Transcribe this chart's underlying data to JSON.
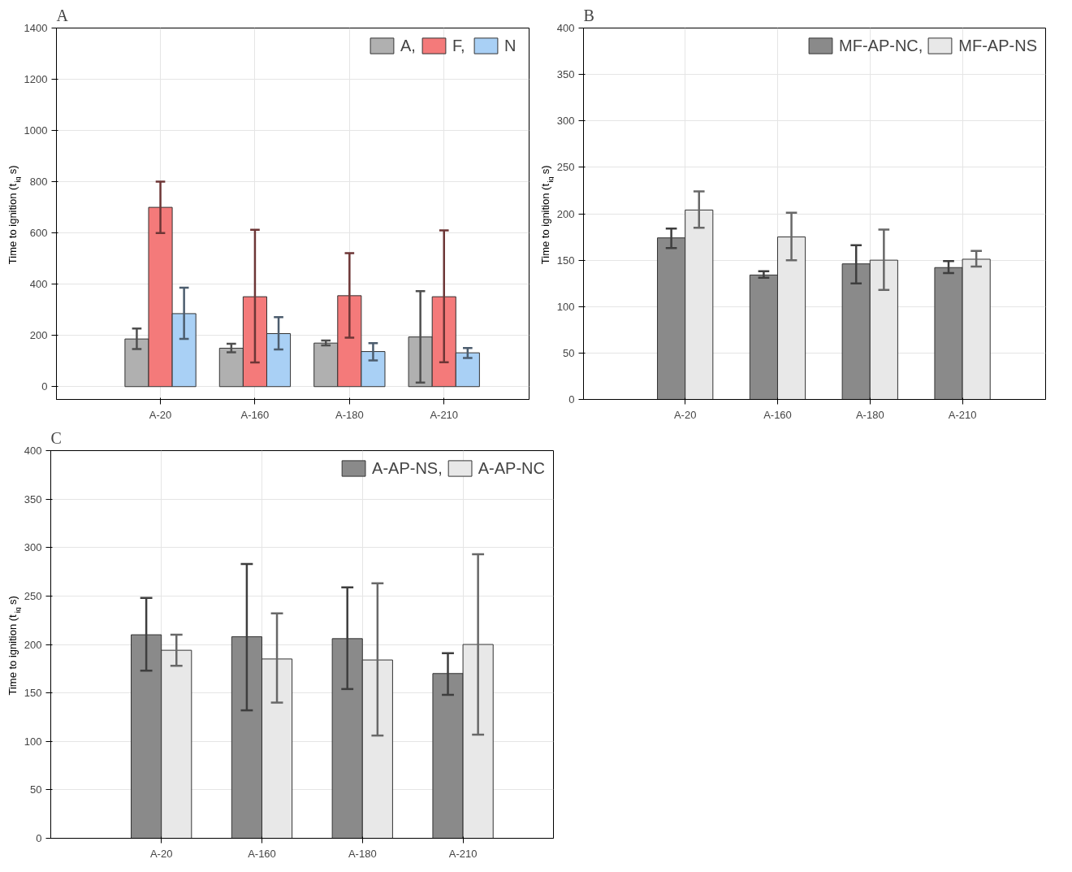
{
  "chart_data": [
    {
      "type": "bar",
      "title": "A",
      "ylabel": "Time to ignition (t$_{ig}$s)",
      "categories": [
        "A-20",
        "A-160",
        "A-180",
        "A-210"
      ],
      "ylim": [
        -50,
        1400
      ],
      "yticks": [
        0,
        200,
        400,
        600,
        800,
        1000,
        1200,
        1400
      ],
      "grid": true,
      "legend": "top right",
      "series": [
        {
          "name": "A,",
          "color": "#b0b0b0",
          "values": [
            186,
            150,
            170,
            194
          ],
          "errors": [
            [
              147,
              227
            ],
            [
              134,
              167
            ],
            [
              161,
              180
            ],
            [
              16,
              373
            ]
          ]
        },
        {
          "name": "F,",
          "color": "#f47a7a",
          "values": [
            700,
            351,
            355,
            351
          ],
          "errors": [
            [
              600,
              800
            ],
            [
              94,
              612
            ],
            [
              191,
              521
            ],
            [
              95,
              610
            ]
          ]
        },
        {
          "name": "N",
          "color": "#a9d0f5",
          "values": [
            285,
            207,
            137,
            132
          ],
          "errors": [
            [
              186,
              386
            ],
            [
              145,
              271
            ],
            [
              102,
              170
            ],
            [
              112,
              151
            ]
          ]
        }
      ]
    },
    {
      "type": "bar",
      "title": "B",
      "ylabel": "Time to ignition (t$_{ig}$s)",
      "categories": [
        "A-20",
        "A-160",
        "A-180",
        "A-210"
      ],
      "ylim": [
        0,
        400
      ],
      "yticks": [
        0,
        50,
        100,
        150,
        200,
        250,
        300,
        350,
        400
      ],
      "grid": true,
      "legend": "top right",
      "series": [
        {
          "name": "MF-AP-NC,",
          "color": "#8a8a8a",
          "values": [
            174,
            134,
            146,
            142
          ],
          "errors": [
            [
              163,
              184
            ],
            [
              131,
              138
            ],
            [
              125,
              166
            ],
            [
              136,
              149
            ]
          ]
        },
        {
          "name": "MF-AP-NS",
          "color": "#e8e8e8",
          "values": [
            204,
            175,
            150,
            151
          ],
          "errors": [
            [
              185,
              224
            ],
            [
              150,
              201
            ],
            [
              118,
              183
            ],
            [
              143,
              160
            ]
          ]
        }
      ]
    },
    {
      "type": "bar",
      "title": "C",
      "ylabel": "Time to ignition (t$_{ig}$s)",
      "categories": [
        "A-20",
        "A-160",
        "A-180",
        "A-210"
      ],
      "ylim": [
        0,
        400
      ],
      "yticks": [
        0,
        50,
        100,
        150,
        200,
        250,
        300,
        350,
        400
      ],
      "grid": true,
      "legend": "top right",
      "series": [
        {
          "name": "A-AP-NS,",
          "color": "#8a8a8a",
          "values": [
            210,
            208,
            206,
            170
          ],
          "errors": [
            [
              173,
              248
            ],
            [
              132,
              283
            ],
            [
              154,
              259
            ],
            [
              148,
              191
            ]
          ]
        },
        {
          "name": "A-AP-NC",
          "color": "#e8e8e8",
          "values": [
            194,
            185,
            184,
            200
          ],
          "errors": [
            [
              178,
              210
            ],
            [
              140,
              232
            ],
            [
              106,
              263
            ],
            [
              107,
              293
            ]
          ]
        }
      ]
    }
  ]
}
